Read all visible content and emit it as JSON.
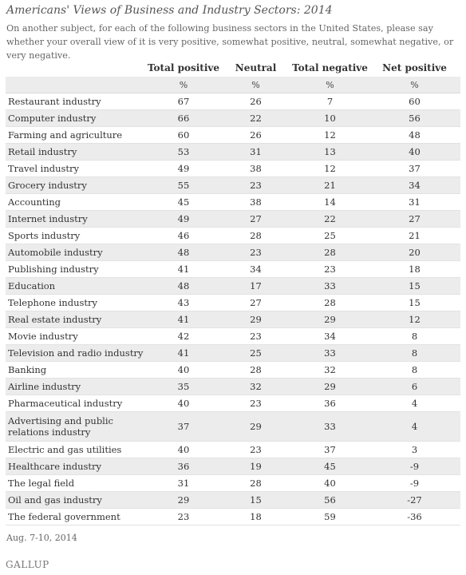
{
  "title": "Americans' Views of Business and Industry Sectors: 2014",
  "subtitle": "On another subject, for each of the following business sectors in the United States, please say whether your overall view of it is very positive, somewhat positive, neutral, somewhat negative, or very negative.",
  "columns": [
    "",
    "Total positive",
    "Neutral",
    "Total negative",
    "Net positive"
  ],
  "unit_row": [
    "",
    "%",
    "%",
    "%",
    "%"
  ],
  "rows": [
    {
      "sector": "Restaurant industry",
      "pos": "67",
      "neu": "26",
      "neg": "7",
      "net": "60"
    },
    {
      "sector": "Computer industry",
      "pos": "66",
      "neu": "22",
      "neg": "10",
      "net": "56"
    },
    {
      "sector": "Farming and agriculture",
      "pos": "60",
      "neu": "26",
      "neg": "12",
      "net": "48"
    },
    {
      "sector": "Retail industry",
      "pos": "53",
      "neu": "31",
      "neg": "13",
      "net": "40"
    },
    {
      "sector": "Travel industry",
      "pos": "49",
      "neu": "38",
      "neg": "12",
      "net": "37"
    },
    {
      "sector": "Grocery industry",
      "pos": "55",
      "neu": "23",
      "neg": "21",
      "net": "34"
    },
    {
      "sector": "Accounting",
      "pos": "45",
      "neu": "38",
      "neg": "14",
      "net": "31"
    },
    {
      "sector": "Internet industry",
      "pos": "49",
      "neu": "27",
      "neg": "22",
      "net": "27"
    },
    {
      "sector": "Sports industry",
      "pos": "46",
      "neu": "28",
      "neg": "25",
      "net": "21"
    },
    {
      "sector": "Automobile industry",
      "pos": "48",
      "neu": "23",
      "neg": "28",
      "net": "20"
    },
    {
      "sector": "Publishing industry",
      "pos": "41",
      "neu": "34",
      "neg": "23",
      "net": "18"
    },
    {
      "sector": "Education",
      "pos": "48",
      "neu": "17",
      "neg": "33",
      "net": "15"
    },
    {
      "sector": "Telephone industry",
      "pos": "43",
      "neu": "27",
      "neg": "28",
      "net": "15"
    },
    {
      "sector": "Real estate industry",
      "pos": "41",
      "neu": "29",
      "neg": "29",
      "net": "12"
    },
    {
      "sector": "Movie industry",
      "pos": "42",
      "neu": "23",
      "neg": "34",
      "net": "8"
    },
    {
      "sector": "Television and radio industry",
      "pos": "41",
      "neu": "25",
      "neg": "33",
      "net": "8"
    },
    {
      "sector": "Banking",
      "pos": "40",
      "neu": "28",
      "neg": "32",
      "net": "8"
    },
    {
      "sector": "Airline industry",
      "pos": "35",
      "neu": "32",
      "neg": "29",
      "net": "6"
    },
    {
      "sector": "Pharmaceutical industry",
      "pos": "40",
      "neu": "23",
      "neg": "36",
      "net": "4"
    },
    {
      "sector": "Advertising and public relations industry",
      "pos": "37",
      "neu": "29",
      "neg": "33",
      "net": "4"
    },
    {
      "sector": "Electric and gas utilities",
      "pos": "40",
      "neu": "23",
      "neg": "37",
      "net": "3"
    },
    {
      "sector": "Healthcare industry",
      "pos": "36",
      "neu": "19",
      "neg": "45",
      "net": "-9"
    },
    {
      "sector": "The legal field",
      "pos": "31",
      "neu": "28",
      "neg": "40",
      "net": "-9"
    },
    {
      "sector": "Oil and gas industry",
      "pos": "29",
      "neu": "15",
      "neg": "56",
      "net": "-27"
    },
    {
      "sector": "The federal government",
      "pos": "23",
      "neu": "18",
      "neg": "59",
      "net": "-36"
    }
  ],
  "footer": {
    "date": "Aug. 7-10, 2014",
    "brand": "GALLUP"
  }
}
